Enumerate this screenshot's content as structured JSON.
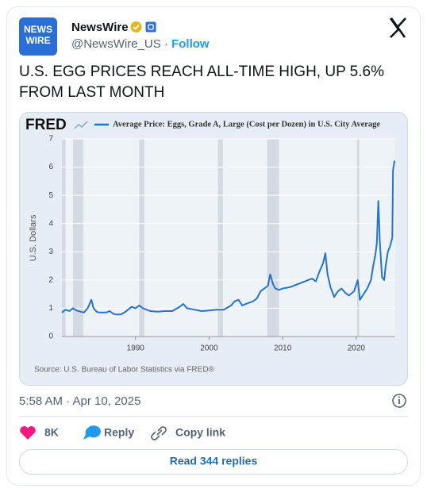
{
  "tweet": {
    "avatar_text": [
      "NEWS",
      "WIRE"
    ],
    "name": "NewsWire",
    "handle": "@NewsWire_US",
    "separator": "·",
    "follow": "Follow",
    "text": [
      "U.S. EGG PRICES REACH ALL-TIME HIGH, UP 5.6%",
      "FROM LAST MONTH"
    ],
    "timestamp": "5:58 AM · Apr 10, 2025",
    "likes": "8K",
    "reply": "Reply",
    "copy_link": "Copy link",
    "read_replies": "Read 344 replies"
  },
  "chart_data": {
    "type": "line",
    "logo": "FRED",
    "title": "Average Price: Eggs, Grade A, Large (Cost per Dozen) in U.S. City Average",
    "y_label": "U.S. Dollars",
    "source": "Source: U.S. Bureau of Labor Statistics via FRED®",
    "xlim": [
      1980,
      2025.3
    ],
    "xticks": [
      1990,
      2000,
      2010,
      2020
    ],
    "ylim": [
      0,
      7
    ],
    "yticks": [
      0,
      1,
      2,
      3,
      4,
      5,
      6,
      7
    ],
    "recessions": [
      [
        1980,
        1980.5
      ],
      [
        1981.5,
        1982.9
      ],
      [
        1990.5,
        1991.2
      ],
      [
        2001.2,
        2001.9
      ],
      [
        2007.9,
        2009.5
      ],
      [
        2020.1,
        2020.4
      ]
    ],
    "series": [
      {
        "name": "Average Price: Eggs, Grade A, Large (Cost per Dozen) in U.S. City Average",
        "color": "#2573d0",
        "x": [],
        "values": []
      }
    ],
    "x": [
      1980,
      1980.5,
      1981,
      1981.5,
      1982,
      1982.5,
      1983,
      1983.5,
      1984,
      1984.3,
      1984.7,
      1985,
      1986,
      1986.5,
      1987,
      1987.5,
      1988,
      1988.5,
      1989,
      1989.5,
      1990,
      1990.5,
      1991,
      1992,
      1993,
      1994,
      1995,
      1996,
      1996.5,
      1997,
      1998,
      1999,
      2000,
      2001,
      2002,
      2003,
      2003.5,
      2004,
      2004.5,
      2005,
      2006,
      2006.5,
      2007,
      2007.5,
      2008,
      2008.3,
      2008.7,
      2009,
      2009.5,
      2010,
      2011,
      2012,
      2013,
      2014,
      2014.5,
      2015,
      2015.5,
      2015.8,
      2016.1,
      2016.5,
      2017,
      2017.5,
      2018,
      2018.5,
      2019,
      2019.7,
      2020.2,
      2020.5,
      2021,
      2021.5,
      2022,
      2022.3,
      2022.6,
      2022.8,
      2023,
      2023.2,
      2023.5,
      2023.8,
      2024,
      2024.3,
      2024.6,
      2024.9,
      2025,
      2025.2
    ],
    "values": [
      0.85,
      0.95,
      0.9,
      1.0,
      0.92,
      0.88,
      0.85,
      1.0,
      1.3,
      1.0,
      0.88,
      0.85,
      0.85,
      0.9,
      0.8,
      0.78,
      0.78,
      0.85,
      0.95,
      1.05,
      1.0,
      1.1,
      1.0,
      0.9,
      0.88,
      0.9,
      0.9,
      1.05,
      1.15,
      1.0,
      0.95,
      0.9,
      0.92,
      0.95,
      0.95,
      1.1,
      1.25,
      1.3,
      1.1,
      1.15,
      1.25,
      1.35,
      1.6,
      1.7,
      1.8,
      2.2,
      1.85,
      1.7,
      1.65,
      1.7,
      1.75,
      1.85,
      1.95,
      2.05,
      1.95,
      2.3,
      2.6,
      2.95,
      2.2,
      1.75,
      1.4,
      1.6,
      1.7,
      1.55,
      1.45,
      1.6,
      2.0,
      1.3,
      1.5,
      1.7,
      2.0,
      2.5,
      2.9,
      3.3,
      4.8,
      3.4,
      2.1,
      2.0,
      2.5,
      3.0,
      3.2,
      3.5,
      5.9,
      6.23
    ]
  }
}
